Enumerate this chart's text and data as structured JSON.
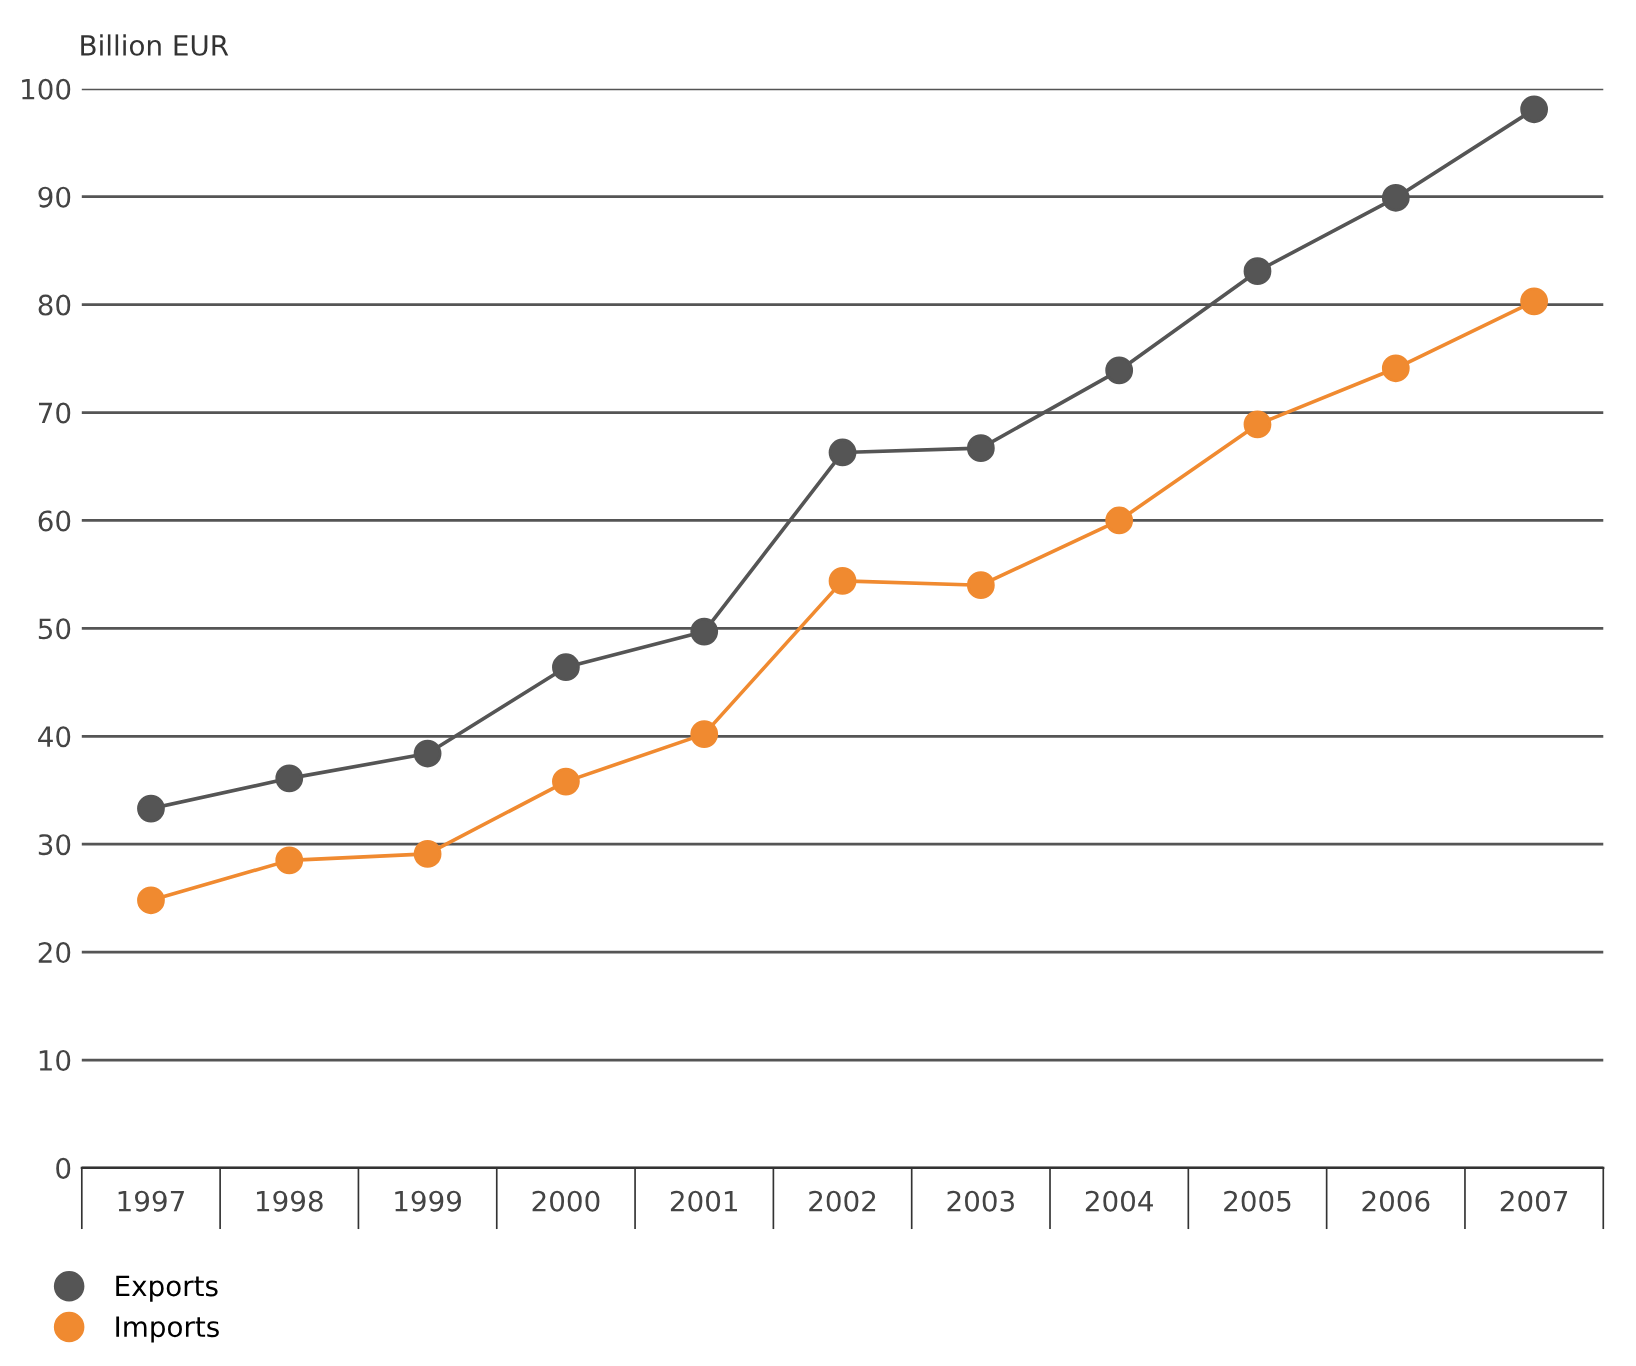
{
  "chart_data": {
    "type": "line",
    "ylabel": "Billion EUR",
    "categories": [
      "1997",
      "1998",
      "1999",
      "2000",
      "2001",
      "2002",
      "2003",
      "2004",
      "2005",
      "2006",
      "2007"
    ],
    "series": [
      {
        "name": "Exports",
        "color": "#555555",
        "values": [
          33.3,
          36.1,
          38.4,
          46.4,
          49.7,
          66.3,
          66.7,
          73.9,
          83.1,
          89.9,
          98.1
        ]
      },
      {
        "name": "Imports",
        "color": "#f08a30",
        "values": [
          24.8,
          28.5,
          29.1,
          35.8,
          40.2,
          54.4,
          54.0,
          60.0,
          68.9,
          74.1,
          80.3
        ]
      }
    ],
    "ylim": [
      0,
      100
    ],
    "yticks": [
      0,
      10,
      20,
      30,
      40,
      50,
      60,
      70,
      80,
      90,
      100
    ],
    "grid": "y",
    "legend": "bottom left",
    "marker": "circle",
    "line_style": "solid"
  }
}
